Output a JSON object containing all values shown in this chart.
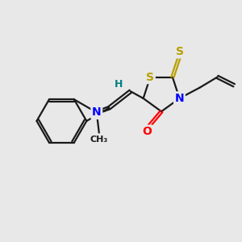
{
  "background_color": "#e8e8e8",
  "bond_color": "#1a1a1a",
  "S_color": "#b8a000",
  "N_color": "#0000ff",
  "O_color": "#ff0000",
  "H_color": "#008080",
  "bond_width": 1.6,
  "font_size_atom": 10,
  "font_size_small": 8,
  "xlim": [
    0,
    10
  ],
  "ylim": [
    0,
    10
  ]
}
